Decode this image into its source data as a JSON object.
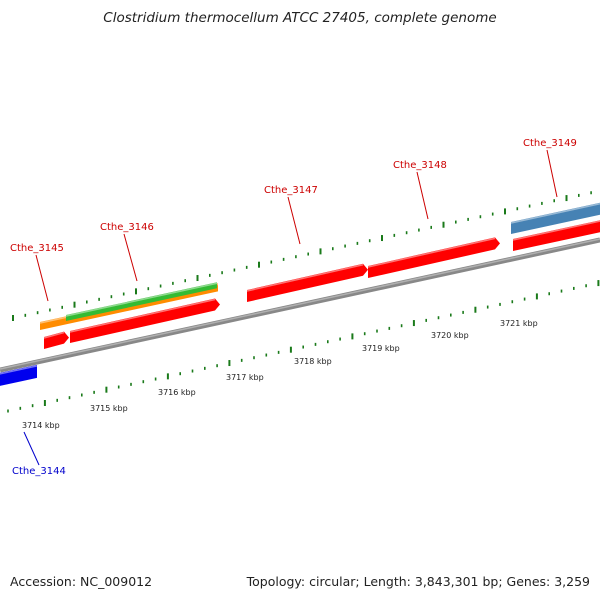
{
  "title": "Clostridium thermocellum ATCC 27405, complete genome",
  "footer": {
    "accession": "Accession: NC_009012",
    "info": "Topology: circular; Length: 3,843,301 bp; Genes: 3,259"
  },
  "colors": {
    "forward_cds": "#ff0000",
    "reverse_cds": "#0000ee",
    "forward_label": "#cc0000",
    "reverse_label": "#0000cc",
    "backbone": "#888888",
    "ticks": "#1a7a1a",
    "orange_feature": "#ff8c00",
    "green_feature": "#33bb33",
    "steelblue_feature": "#4682b4"
  },
  "axis": {
    "unit": "kbp",
    "tick_labels": [
      "3714 kbp",
      "3715 kbp",
      "3716 kbp",
      "3717 kbp",
      "3718 kbp",
      "3719 kbp",
      "3720 kbp",
      "3721 kbp"
    ]
  },
  "genes": [
    {
      "name": "Cthe_3144",
      "strand": "reverse",
      "label": "Cthe_3144"
    },
    {
      "name": "Cthe_3145",
      "strand": "forward",
      "label": "Cthe_3145"
    },
    {
      "name": "Cthe_3146",
      "strand": "forward",
      "label": "Cthe_3146"
    },
    {
      "name": "Cthe_3147",
      "strand": "forward",
      "label": "Cthe_3147"
    },
    {
      "name": "Cthe_3148",
      "strand": "forward",
      "label": "Cthe_3148"
    },
    {
      "name": "Cthe_3149",
      "strand": "forward",
      "label": "Cthe_3149"
    }
  ]
}
